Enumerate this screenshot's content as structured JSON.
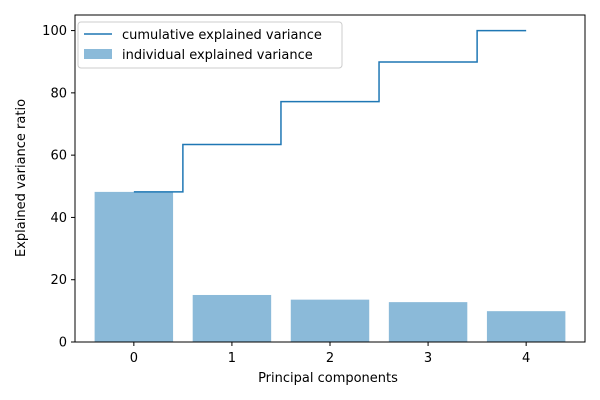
{
  "chart_data": {
    "type": "bar",
    "categories": [
      "0",
      "1",
      "2",
      "3",
      "4"
    ],
    "x": [
      0,
      1,
      2,
      3,
      4
    ],
    "xlabel": "Principal components",
    "ylabel": "Explained variance ratio",
    "ylim": [
      0,
      105
    ],
    "xlim": [
      -0.6,
      4.6
    ],
    "yticks": [
      0,
      20,
      40,
      60,
      80,
      100
    ],
    "xticks": [
      0,
      1,
      2,
      3,
      4
    ],
    "grid": false,
    "legend_position": "top-left",
    "series": [
      {
        "name": "individual explained variance",
        "kind": "bar",
        "color": "#8bbad9",
        "values": [
          48.2,
          15.1,
          13.6,
          12.8,
          9.9
        ]
      },
      {
        "name": "cumulative explained variance",
        "kind": "step",
        "color": "#1f77b4",
        "values": [
          48.2,
          63.4,
          77.2,
          89.9,
          100.0
        ]
      }
    ]
  }
}
